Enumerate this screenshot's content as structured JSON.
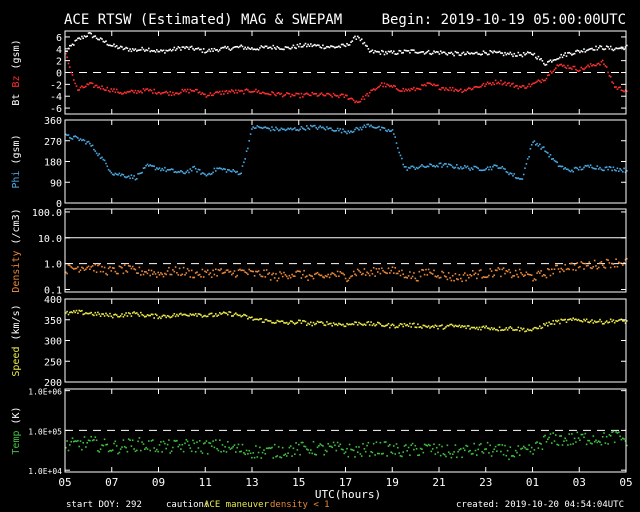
{
  "header": {
    "title": "ACE RTSW (Estimated) MAG & SWEPAM",
    "begin": "Begin: 2019-10-19 05:00:00UTC"
  },
  "footer": {
    "start_doy": "start DOY: 292",
    "caution_label": "caution:",
    "maneuver": "ACE maneuver",
    "density_note": "density < 1",
    "created": "created: 2019-10-20 04:54:04UTC"
  },
  "colors": {
    "bt": "#ffffff",
    "bz": "#ff3030",
    "phi": "#4aa8e0",
    "density": "#e8883a",
    "speed": "#e8e84a",
    "temp": "#40c040",
    "axis": "#ffffff",
    "background": "#000000"
  },
  "chart_data": {
    "type": "scatter",
    "x_axis": {
      "label": "UTC(hours)",
      "range_hours": [
        0,
        24
      ],
      "tick_labels": [
        "05",
        "07",
        "09",
        "11",
        "13",
        "15",
        "17",
        "19",
        "21",
        "23",
        "01",
        "03",
        "05"
      ]
    },
    "panels": [
      {
        "id": "mag",
        "ylabel_parts": [
          {
            "text": "Bt",
            "color": "#ffffff"
          },
          {
            "text": "Bz",
            "color": "#ff3030"
          },
          {
            "text": "(gsm)",
            "color": "#ffffff"
          }
        ],
        "scale": "linear",
        "ylim": [
          -7,
          7
        ],
        "ticks": [
          6,
          4,
          2,
          0,
          -2,
          -4,
          -6
        ],
        "tick_labels": [
          "6",
          "4",
          "2",
          "0",
          "-2",
          "-4",
          "-6"
        ],
        "dashed_lines": [
          0
        ],
        "series": [
          {
            "name": "Bt",
            "color": "#ffffff",
            "x": [
              0,
              0.5,
              1,
              1.5,
              2,
              2.5,
              3,
              3.5,
              4,
              4.5,
              5,
              5.5,
              6,
              6.5,
              7,
              7.5,
              8,
              8.5,
              9,
              9.5,
              10,
              10.5,
              11,
              11.5,
              12,
              12.5,
              13,
              13.5,
              14,
              14.5,
              15,
              15.5,
              16,
              16.5,
              17,
              17.5,
              18,
              18.5,
              19,
              19.5,
              20,
              20.5,
              21,
              21.5,
              22,
              22.5,
              23,
              23.5,
              24
            ],
            "y": [
              3.5,
              5.5,
              6.5,
              5.5,
              4.5,
              4.0,
              3.8,
              4.0,
              3.5,
              3.8,
              4.2,
              4.0,
              3.6,
              3.9,
              4.1,
              4.3,
              4.0,
              4.2,
              4.3,
              4.1,
              4.5,
              4.6,
              4.4,
              4.3,
              4.5,
              6.2,
              3.5,
              3.4,
              3.3,
              3.5,
              3.6,
              3.4,
              3.4,
              3.2,
              3.1,
              3.2,
              3.4,
              3.2,
              3.1,
              3.0,
              3.2,
              1.5,
              2.5,
              3.2,
              3.6,
              4.1,
              4.2,
              4.0,
              4.3
            ]
          },
          {
            "name": "Bz",
            "color": "#ff3030",
            "x": [
              0,
              0.5,
              1,
              1.5,
              2,
              2.5,
              3,
              3.5,
              4,
              4.5,
              5,
              5.5,
              6,
              6.5,
              7,
              7.5,
              8,
              8.5,
              9,
              9.5,
              10,
              10.5,
              11,
              11.5,
              12,
              12.5,
              13,
              13.5,
              14,
              14.5,
              15,
              15.5,
              16,
              16.5,
              17,
              17.5,
              18,
              18.5,
              19,
              19.5,
              20,
              20.5,
              21,
              21.5,
              22,
              22.5,
              23,
              23.5,
              24
            ],
            "y": [
              3.0,
              -3.0,
              -2.0,
              -2.5,
              -3.0,
              -3.5,
              -3.2,
              -3.0,
              -3.3,
              -3.5,
              -3.2,
              -3.0,
              -3.8,
              -3.5,
              -3.2,
              -3.3,
              -3.0,
              -3.5,
              -3.6,
              -3.8,
              -3.9,
              -3.7,
              -3.8,
              -3.9,
              -4.0,
              -5.0,
              -3.5,
              -2.0,
              -2.5,
              -3.0,
              -2.8,
              -2.0,
              -2.5,
              -2.8,
              -3.0,
              -2.5,
              -2.0,
              -1.5,
              -2.0,
              -2.5,
              -2.0,
              -1.0,
              1.2,
              1.0,
              0.5,
              1.2,
              1.8,
              -2.5,
              -3.0
            ]
          }
        ]
      },
      {
        "id": "phi",
        "ylabel_parts": [
          {
            "text": "Phi",
            "color": "#4aa8e0"
          },
          {
            "text": "(gsm)",
            "color": "#ffffff"
          }
        ],
        "scale": "linear",
        "ylim": [
          0,
          360
        ],
        "ticks": [
          360,
          270,
          180,
          90,
          0
        ],
        "tick_labels": [
          "360",
          "270",
          "180",
          "90",
          "0"
        ],
        "dashed_lines": [],
        "series": [
          {
            "name": "Phi",
            "color": "#4aa8e0",
            "x": [
              0,
              0.5,
              1,
              1.5,
              2,
              2.5,
              3,
              3.5,
              4,
              4.5,
              5,
              5.5,
              6,
              6.5,
              7,
              7.5,
              8,
              8.5,
              9,
              9.5,
              10,
              10.5,
              11,
              11.5,
              12,
              12.5,
              13,
              13.5,
              14,
              14.5,
              15,
              15.5,
              16,
              16.5,
              17,
              17.5,
              18,
              18.5,
              19,
              19.5,
              20,
              20.5,
              21,
              21.5,
              22,
              22.5,
              23,
              23.5,
              24
            ],
            "y": [
              290,
              280,
              260,
              200,
              130,
              120,
              110,
              160,
              150,
              140,
              130,
              150,
              120,
              150,
              140,
              130,
              330,
              325,
              320,
              318,
              322,
              330,
              325,
              320,
              310,
              320,
              340,
              320,
              310,
              150,
              155,
              160,
              165,
              160,
              155,
              150,
              150,
              160,
              130,
              100,
              270,
              230,
              170,
              140,
              150,
              160,
              150,
              150,
              140
            ]
          }
        ]
      },
      {
        "id": "density",
        "ylabel_parts": [
          {
            "text": "Density",
            "color": "#e8883a"
          },
          {
            "text": "(/cm3)",
            "color": "#ffffff"
          }
        ],
        "scale": "log",
        "ylim": [
          0.08,
          130
        ],
        "ticks": [
          100,
          10,
          1,
          0.1
        ],
        "tick_labels": [
          "100.0",
          "10.0",
          "1.0",
          "0.1"
        ],
        "dashed_lines": [
          1
        ],
        "solid_lines": [
          10
        ],
        "series": [
          {
            "name": "Density",
            "color": "#e8883a",
            "x": [
              0,
              0.5,
              1,
              1.5,
              2,
              2.5,
              3,
              3.5,
              4,
              4.5,
              5,
              5.5,
              6,
              6.5,
              7,
              7.5,
              8,
              8.5,
              9,
              9.5,
              10,
              10.5,
              11,
              11.5,
              12,
              12.5,
              13,
              13.5,
              14,
              14.5,
              15,
              15.5,
              16,
              16.5,
              17,
              17.5,
              18,
              18.5,
              19,
              19.5,
              20,
              20.5,
              21,
              21.5,
              22,
              22.5,
              23,
              23.5,
              24
            ],
            "y": [
              0.6,
              0.7,
              0.8,
              0.6,
              0.5,
              0.6,
              0.5,
              0.5,
              0.4,
              0.5,
              0.5,
              0.4,
              0.4,
              0.5,
              0.4,
              0.5,
              0.4,
              0.4,
              0.3,
              0.4,
              0.4,
              0.3,
              0.3,
              0.4,
              0.3,
              0.5,
              0.4,
              0.6,
              0.5,
              0.4,
              0.3,
              0.5,
              0.4,
              0.3,
              0.3,
              0.4,
              0.4,
              0.5,
              0.4,
              0.4,
              0.3,
              0.4,
              0.6,
              0.8,
              0.8,
              0.9,
              1.0,
              1.1,
              1.2
            ]
          }
        ]
      },
      {
        "id": "speed",
        "ylabel_parts": [
          {
            "text": "Speed",
            "color": "#e8e84a"
          },
          {
            "text": "(km/s)",
            "color": "#ffffff"
          }
        ],
        "scale": "linear",
        "ylim": [
          200,
          400
        ],
        "ticks": [
          400,
          350,
          300,
          250,
          200
        ],
        "tick_labels": [
          "400",
          "350",
          "300",
          "250",
          "200"
        ],
        "dashed_lines": [],
        "series": [
          {
            "name": "Speed",
            "color": "#e8e84a",
            "x": [
              0,
              0.5,
              1,
              1.5,
              2,
              2.5,
              3,
              3.5,
              4,
              4.5,
              5,
              5.5,
              6,
              6.5,
              7,
              7.5,
              8,
              8.5,
              9,
              9.5,
              10,
              10.5,
              11,
              11.5,
              12,
              12.5,
              13,
              13.5,
              14,
              14.5,
              15,
              15.5,
              16,
              16.5,
              17,
              17.5,
              18,
              18.5,
              19,
              19.5,
              20,
              20.5,
              21,
              21.5,
              22,
              22.5,
              23,
              23.5,
              24
            ],
            "y": [
              365,
              368,
              366,
              362,
              360,
              362,
              365,
              360,
              358,
              360,
              362,
              365,
              360,
              362,
              365,
              360,
              352,
              348,
              345,
              342,
              345,
              340,
              342,
              340,
              338,
              342,
              340,
              338,
              335,
              338,
              336,
              334,
              332,
              335,
              333,
              330,
              332,
              328,
              330,
              327,
              325,
              338,
              345,
              348,
              350,
              347,
              345,
              348,
              346
            ]
          }
        ]
      },
      {
        "id": "temp",
        "ylabel_parts": [
          {
            "text": "Temp",
            "color": "#40c040"
          },
          {
            "text": "(K)",
            "color": "#ffffff"
          }
        ],
        "scale": "log",
        "ylim": [
          9000,
          1100000
        ],
        "ticks": [
          1000000,
          100000,
          10000
        ],
        "tick_labels": [
          "1.0E+06",
          "1.0E+05",
          "1.0E+04"
        ],
        "dashed_lines": [
          100000
        ],
        "series": [
          {
            "name": "Temp",
            "color": "#40c040",
            "x": [
              0,
              0.5,
              1,
              1.5,
              2,
              2.5,
              3,
              3.5,
              4,
              4.5,
              5,
              5.5,
              6,
              6.5,
              7,
              7.5,
              8,
              8.5,
              9,
              9.5,
              10,
              10.5,
              11,
              11.5,
              12,
              12.5,
              13,
              13.5,
              14,
              14.5,
              15,
              15.5,
              16,
              16.5,
              17,
              17.5,
              18,
              18.5,
              19,
              19.5,
              20,
              20.5,
              21,
              21.5,
              22,
              22.5,
              23,
              23.5,
              24
            ],
            "y": [
              40000,
              45000,
              50000,
              42000,
              38000,
              40000,
              45000,
              42000,
              40000,
              38000,
              40000,
              42000,
              38000,
              40000,
              36000,
              32000,
              30000,
              28000,
              30000,
              32000,
              34000,
              36000,
              33000,
              35000,
              32000,
              30000,
              34000,
              36000,
              32000,
              30000,
              33000,
              35000,
              30000,
              28000,
              30000,
              32000,
              34000,
              30000,
              28000,
              27000,
              30000,
              55000,
              60000,
              58000,
              62000,
              65000,
              60000,
              70000,
              55000
            ]
          }
        ]
      }
    ]
  }
}
